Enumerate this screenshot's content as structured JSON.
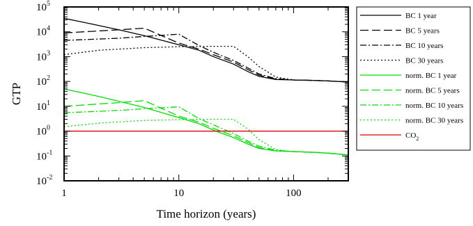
{
  "chart_data": {
    "type": "line",
    "xlabel": "Time horizon (years)",
    "ylabel": "GTP",
    "xscale": "log",
    "yscale": "log",
    "xlim": [
      1,
      300
    ],
    "ylim": [
      0.01,
      100000
    ],
    "x_ticks": [
      {
        "value": 1,
        "label": "1"
      },
      {
        "value": 10,
        "label": "10"
      },
      {
        "value": 100,
        "label": "100"
      }
    ],
    "y_ticks": [
      {
        "value": 100000,
        "base": "10",
        "exp": "5"
      },
      {
        "value": 10000,
        "base": "10",
        "exp": "4"
      },
      {
        "value": 1000,
        "base": "10",
        "exp": "3"
      },
      {
        "value": 100,
        "base": "10",
        "exp": "2"
      },
      {
        "value": 10,
        "base": "10",
        "exp": "1"
      },
      {
        "value": 1,
        "base": "10",
        "exp": "0"
      },
      {
        "value": 0.1,
        "base": "10",
        "exp": "-1"
      },
      {
        "value": 0.01,
        "base": "10",
        "exp": "-2"
      }
    ],
    "grid": false,
    "legend_position": "right",
    "series": [
      {
        "name": "BC 1 year",
        "color": "#000000",
        "dash": "solid",
        "points": [
          [
            1,
            35000
          ],
          [
            2,
            18000
          ],
          [
            3,
            12000
          ],
          [
            5,
            7000
          ],
          [
            10,
            3000
          ],
          [
            15,
            1800
          ],
          [
            20,
            1000
          ],
          [
            30,
            500
          ],
          [
            40,
            250
          ],
          [
            50,
            160
          ],
          [
            70,
            120
          ],
          [
            100,
            115
          ],
          [
            150,
            110
          ],
          [
            200,
            105
          ],
          [
            300,
            95
          ]
        ]
      },
      {
        "name": "BC 5 years",
        "color": "#000000",
        "dash": "dash",
        "points": [
          [
            1,
            9000
          ],
          [
            3,
            12000
          ],
          [
            5,
            14000
          ],
          [
            10,
            3500
          ],
          [
            15,
            2000
          ],
          [
            20,
            1200
          ],
          [
            30,
            600
          ],
          [
            40,
            300
          ],
          [
            50,
            180
          ],
          [
            70,
            125
          ],
          [
            100,
            115
          ],
          [
            150,
            110
          ],
          [
            200,
            105
          ],
          [
            300,
            95
          ]
        ]
      },
      {
        "name": "BC 10 years",
        "color": "#000000",
        "dash": "dashdot",
        "points": [
          [
            1,
            4500
          ],
          [
            3,
            5500
          ],
          [
            5,
            6500
          ],
          [
            10,
            8000
          ],
          [
            15,
            2800
          ],
          [
            20,
            1500
          ],
          [
            30,
            700
          ],
          [
            40,
            350
          ],
          [
            50,
            200
          ],
          [
            70,
            130
          ],
          [
            100,
            115
          ],
          [
            150,
            110
          ],
          [
            200,
            105
          ],
          [
            300,
            95
          ]
        ]
      },
      {
        "name": "BC 30 years",
        "color": "#000000",
        "dash": "dot",
        "points": [
          [
            1,
            1200
          ],
          [
            2,
            1800
          ],
          [
            5,
            2300
          ],
          [
            10,
            2500
          ],
          [
            20,
            2600
          ],
          [
            30,
            2600
          ],
          [
            40,
            1000
          ],
          [
            50,
            400
          ],
          [
            70,
            150
          ],
          [
            100,
            115
          ],
          [
            150,
            110
          ],
          [
            200,
            105
          ],
          [
            300,
            95
          ]
        ]
      },
      {
        "name": "norm. BC 1 year",
        "color": "#00dd00",
        "dash": "solid",
        "points": [
          [
            1,
            50
          ],
          [
            2,
            25
          ],
          [
            3,
            16
          ],
          [
            5,
            9
          ],
          [
            10,
            3.5
          ],
          [
            15,
            2
          ],
          [
            20,
            1.1
          ],
          [
            30,
            0.55
          ],
          [
            40,
            0.3
          ],
          [
            50,
            0.2
          ],
          [
            70,
            0.16
          ],
          [
            100,
            0.15
          ],
          [
            150,
            0.14
          ],
          [
            200,
            0.13
          ],
          [
            300,
            0.11
          ]
        ]
      },
      {
        "name": "norm. BC 5 years",
        "color": "#00dd00",
        "dash": "dash",
        "points": [
          [
            1,
            10
          ],
          [
            3,
            14
          ],
          [
            5,
            17
          ],
          [
            10,
            4
          ],
          [
            15,
            2.3
          ],
          [
            20,
            1.3
          ],
          [
            30,
            0.65
          ],
          [
            40,
            0.35
          ],
          [
            50,
            0.22
          ],
          [
            70,
            0.16
          ],
          [
            100,
            0.15
          ],
          [
            150,
            0.14
          ],
          [
            200,
            0.13
          ],
          [
            300,
            0.11
          ]
        ]
      },
      {
        "name": "norm. BC 10 years",
        "color": "#00dd00",
        "dash": "dashdot",
        "points": [
          [
            1,
            5.5
          ],
          [
            3,
            6.8
          ],
          [
            5,
            8
          ],
          [
            10,
            9.5
          ],
          [
            15,
            3.2
          ],
          [
            20,
            1.8
          ],
          [
            30,
            0.8
          ],
          [
            40,
            0.4
          ],
          [
            50,
            0.25
          ],
          [
            70,
            0.17
          ],
          [
            100,
            0.15
          ],
          [
            150,
            0.14
          ],
          [
            200,
            0.13
          ],
          [
            300,
            0.11
          ]
        ]
      },
      {
        "name": "norm. BC 30 years",
        "color": "#00dd00",
        "dash": "dot",
        "points": [
          [
            1,
            1.5
          ],
          [
            2,
            2.1
          ],
          [
            5,
            2.7
          ],
          [
            10,
            2.9
          ],
          [
            20,
            3
          ],
          [
            30,
            3
          ],
          [
            40,
            1.2
          ],
          [
            50,
            0.45
          ],
          [
            70,
            0.18
          ],
          [
            100,
            0.15
          ],
          [
            150,
            0.14
          ],
          [
            200,
            0.13
          ],
          [
            300,
            0.11
          ]
        ]
      },
      {
        "name": "CO",
        "name_sub": "2",
        "color": "#dd0000",
        "dash": "solid",
        "points": [
          [
            1,
            1
          ],
          [
            300,
            1
          ]
        ]
      }
    ]
  }
}
